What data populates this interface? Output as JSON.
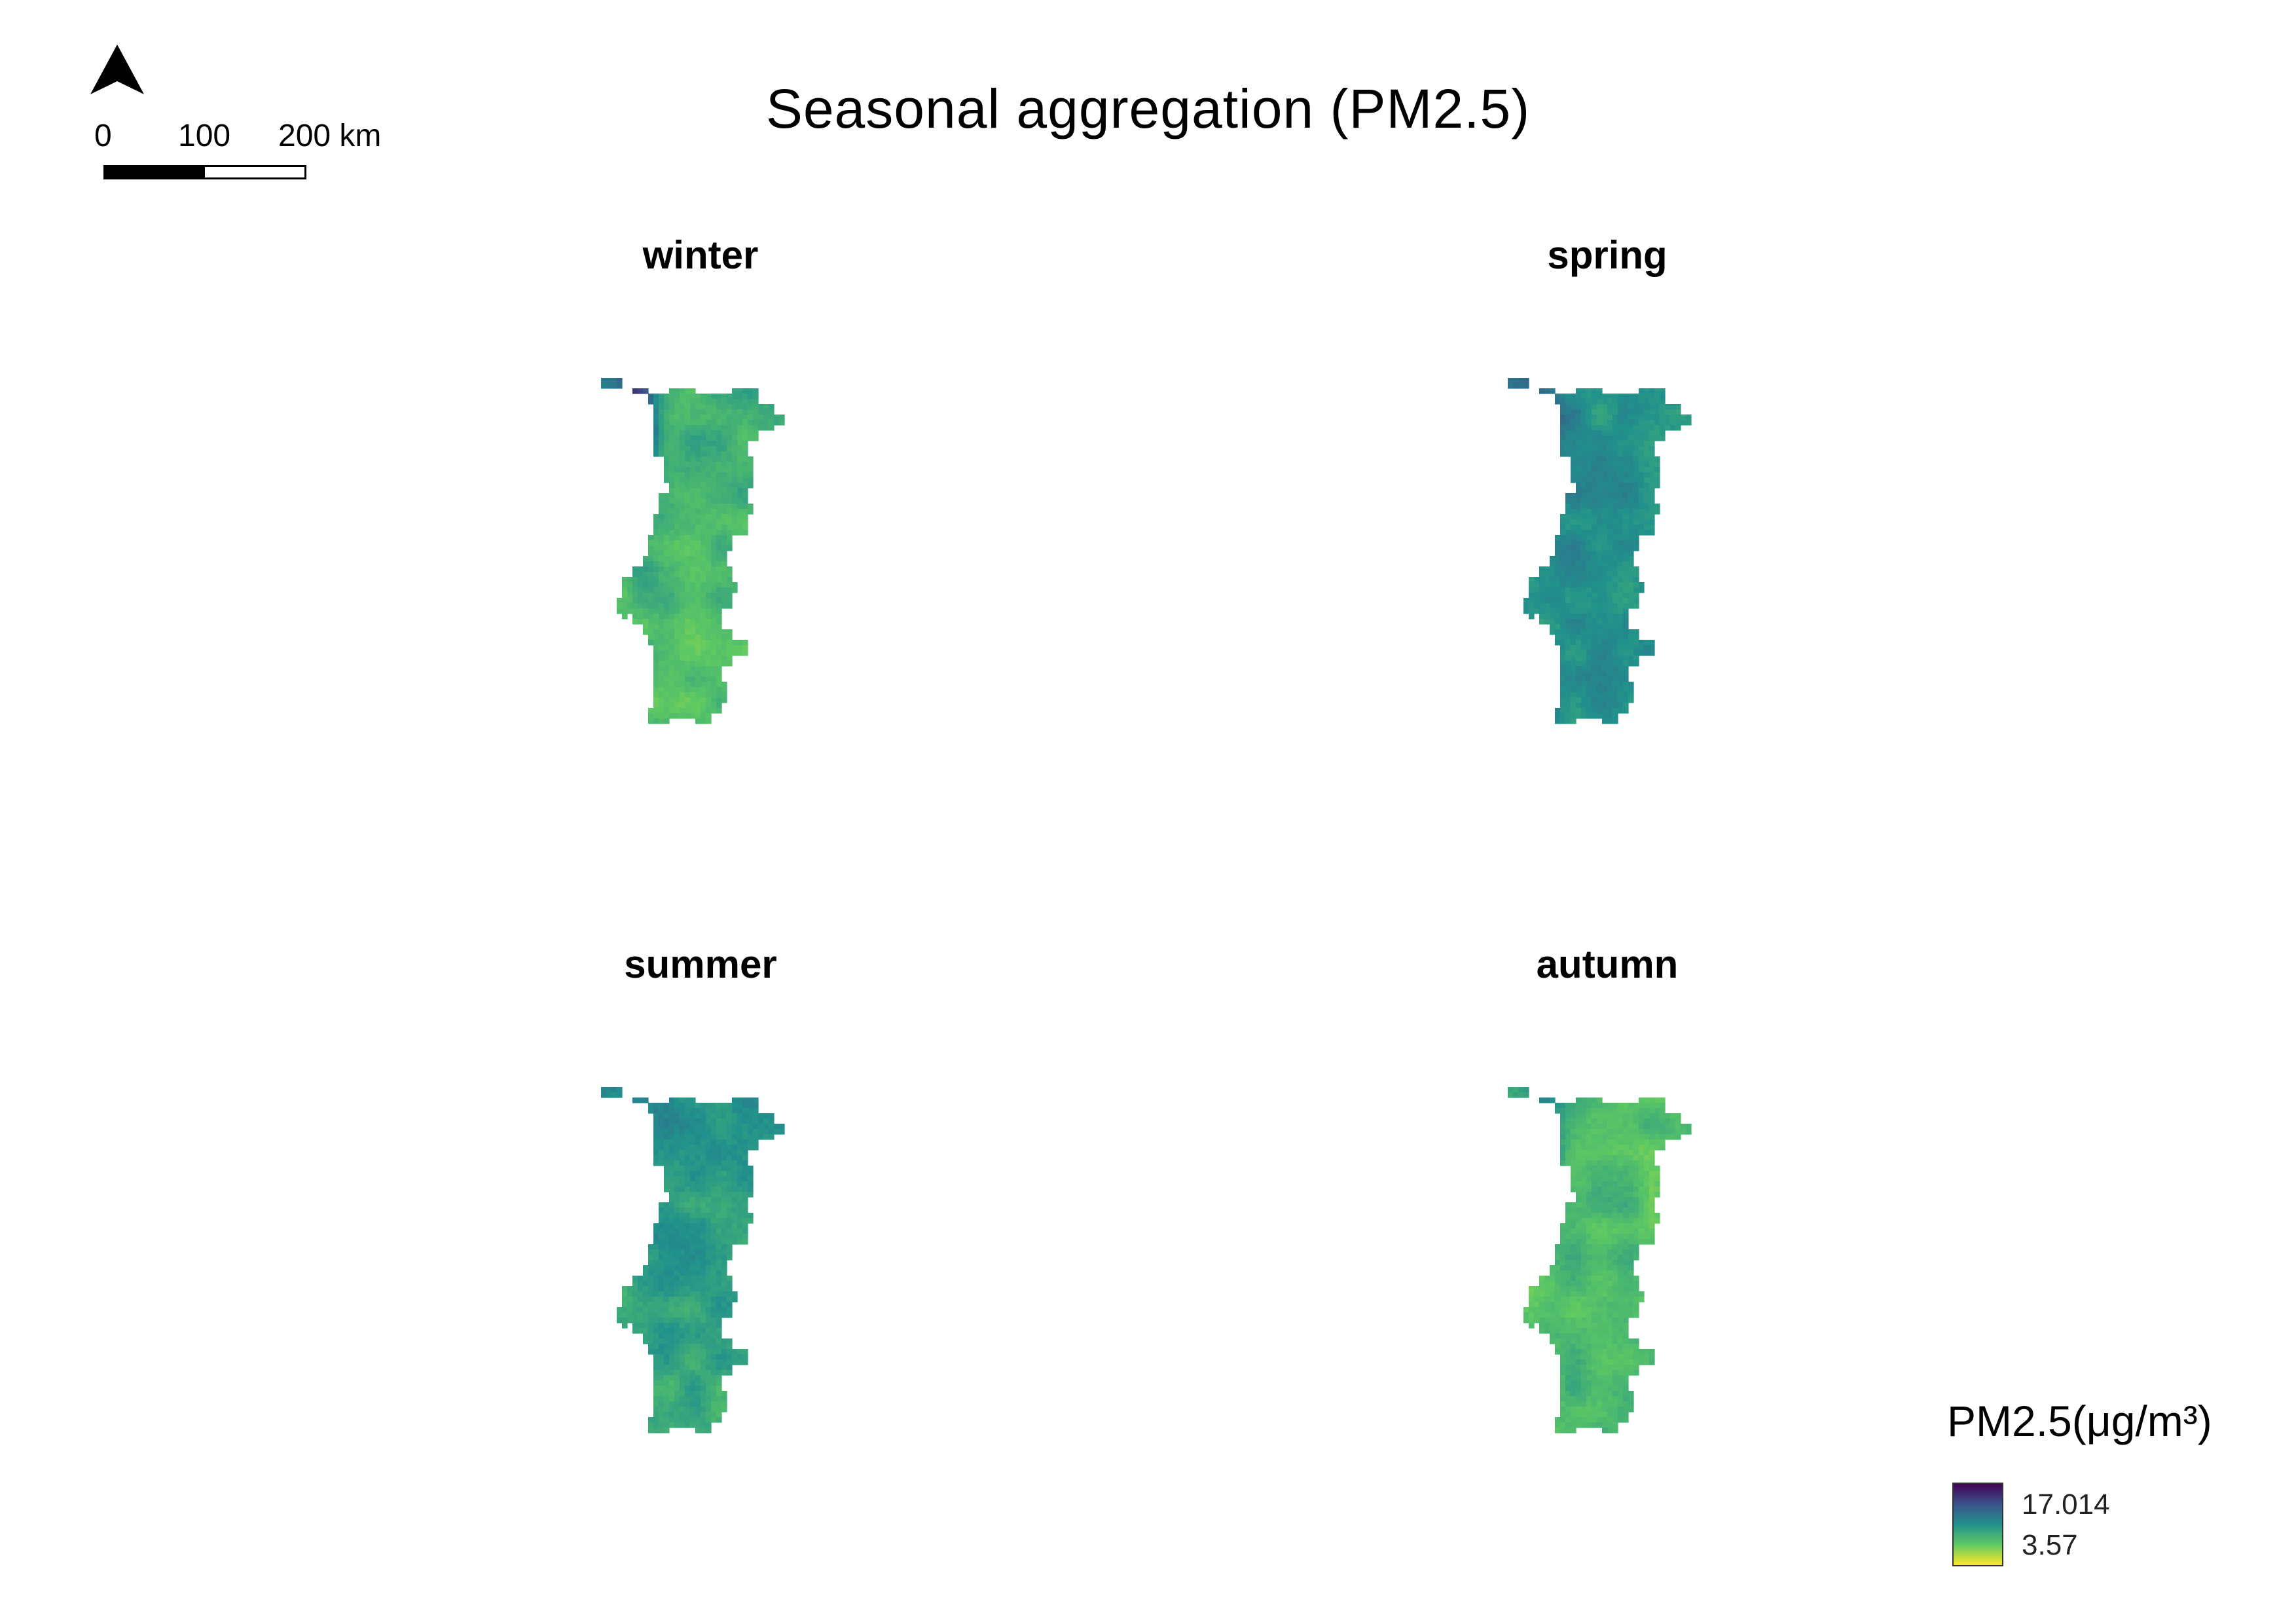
{
  "title": "Seasonal aggregation (PM2.5)",
  "north_arrow": {
    "icon": "north-arrow-icon"
  },
  "scale_bar": {
    "labels": [
      "0",
      "100",
      "200 km"
    ]
  },
  "legend": {
    "title": "PM2.5(μg/m³)",
    "max": "17.014",
    "min": "3.57",
    "colormap": "viridis",
    "colors": [
      "#440154",
      "#3b528b",
      "#21918c",
      "#5ec962",
      "#fde725"
    ]
  },
  "panels": [
    {
      "id": "winter",
      "label": "winter",
      "mean": 0.38,
      "north_west_hotspot": 0.95,
      "coast_gradient": 0.45,
      "south_level": 0.28
    },
    {
      "id": "spring",
      "label": "spring",
      "mean": 0.5,
      "north_west_hotspot": 0.7,
      "coast_gradient": 0.22,
      "south_level": 0.48
    },
    {
      "id": "summer",
      "label": "summer",
      "mean": 0.5,
      "north_west_hotspot": 0.55,
      "coast_gradient": 0.15,
      "south_level": 0.38
    },
    {
      "id": "autumn",
      "label": "autumn",
      "mean": 0.3,
      "north_west_hotspot": 0.55,
      "coast_gradient": 0.2,
      "south_level": 0.32
    }
  ]
}
